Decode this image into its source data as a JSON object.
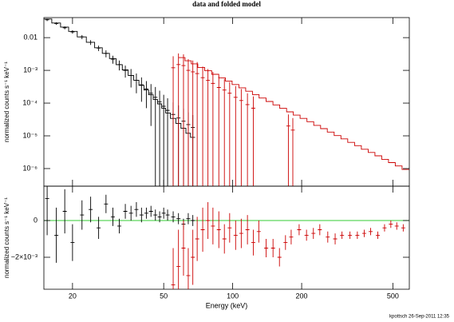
{
  "title": "data and folded model",
  "footer": "kpottsch 26-Sep-2011 12:35",
  "chart_data": [
    {
      "type": "errorbar",
      "ylabel": "normalized counts s⁻¹ keV⁻¹",
      "log_x": true,
      "log_y": true,
      "xlim": [
        15,
        590
      ],
      "ylim": [
        2.9e-07,
        0.041
      ],
      "yticks": [
        {
          "value": 1e-06,
          "label": "10⁻⁶"
        },
        {
          "value": 1e-05,
          "label": "10⁻⁵"
        },
        {
          "value": 0.0001,
          "label": "10⁻⁴"
        },
        {
          "value": 0.001,
          "label": "10⁻³"
        },
        0.01
      ],
      "series": [
        {
          "style": "points",
          "color": "#000000",
          "x": [
            15.5,
            17,
            18.5,
            20,
            22,
            24,
            26,
            28,
            30,
            32,
            34,
            36,
            38,
            40,
            42,
            44,
            46,
            48,
            50,
            52,
            55,
            58,
            61,
            64,
            67
          ],
          "values": [
            0.035,
            0.027,
            0.02,
            0.015,
            0.0105,
            0.0072,
            0.0048,
            0.0033,
            0.0022,
            0.0015,
            0.001,
            0.0007,
            0.0005,
            0.00036,
            0.00027,
            0.0002,
            0.00015,
            0.00011,
            8e-05,
            6e-05,
            4.5e-05,
            3.5e-05,
            2.8e-05,
            2.2e-05,
            1.8e-05
          ],
          "errors": [
            0.003,
            0.0025,
            0.002,
            0.0018,
            0.0015,
            0.0012,
            0.0009,
            0.0008,
            0.0006,
            0.0005,
            0.0004,
            0.0004,
            0.0003,
            0.00025,
            0.0002,
            0.00018,
            0.00016,
            0.00013,
            0.0001,
            8e-05,
            6e-05,
            5e-05,
            4e-05,
            3e-05,
            2.5e-05
          ]
        },
        {
          "style": "step",
          "color": "#000000",
          "x": [
            15.5,
            17,
            18.5,
            20,
            22,
            24,
            26,
            28,
            30,
            32,
            34,
            36,
            38,
            40,
            42,
            44,
            46,
            48,
            50,
            52,
            55,
            58,
            61,
            64,
            67
          ],
          "values": [
            0.037,
            0.028,
            0.021,
            0.0155,
            0.0105,
            0.0072,
            0.0049,
            0.0033,
            0.0023,
            0.0015,
            0.00103,
            0.0007,
            0.0005,
            0.00035,
            0.00025,
            0.00018,
            0.00013,
            9.5e-05,
            7e-05,
            5e-05,
            3.4e-05,
            2.4e-05,
            1.7e-05,
            1.2e-05,
            9e-06
          ]
        },
        {
          "style": "points",
          "color": "#cc0000",
          "x": [
            55,
            58,
            61,
            64,
            67,
            70,
            74,
            78,
            82,
            87,
            92,
            97,
            103,
            109,
            116,
            123,
            175,
            183
          ],
          "values": [
            0.0012,
            0.0015,
            0.0014,
            0.001,
            0.0009,
            0.0008,
            0.0006,
            0.0005,
            0.0004,
            0.0003,
            0.00025,
            0.0002,
            0.00015,
            0.00012,
            9e-05,
            7e-05,
            2e-05,
            1.5e-05
          ],
          "errors": [
            0.0015,
            0.0018,
            0.0017,
            0.0012,
            0.0011,
            0.001,
            0.0007,
            0.0006,
            0.0005,
            0.00036,
            0.0003,
            0.00024,
            0.00018,
            0.00015,
            0.00011,
            9e-05,
            2.5e-05,
            2e-05
          ]
        },
        {
          "style": "step",
          "color": "#cc0000",
          "x": [
            60,
            64,
            68,
            73,
            78,
            84,
            90,
            96,
            103,
            110,
            118,
            126,
            135,
            145,
            155,
            166,
            178,
            190,
            204,
            218,
            234,
            250,
            268,
            287,
            307,
            329,
            352,
            377,
            404,
            432,
            463,
            495,
            530,
            568
          ],
          "values": [
            0.00245,
            0.00196,
            0.00158,
            0.00123,
            0.00098,
            0.00076,
            0.000593,
            0.000473,
            0.00037,
            0.000294,
            0.00023,
            0.000182,
            0.000143,
            0.000112,
            8.8e-05,
            6.9e-05,
            5.4e-05,
            4.3e-05,
            3.4e-05,
            2.7e-05,
            2.09e-05,
            1.66e-05,
            1.3e-05,
            1.02e-05,
            8.1e-06,
            6.3e-06,
            5e-06,
            3.9e-06,
            3.1e-06,
            2.45e-06,
            1.92e-06,
            1.52e-06,
            1.2e-06,
            9.4e-07
          ]
        }
      ]
    },
    {
      "type": "errorbar",
      "ylabel": "normalized counts s⁻¹ keV⁻¹",
      "xlabel": "Energy (keV)",
      "log_x": true,
      "log_y": false,
      "xlim": [
        15,
        590
      ],
      "ylim": [
        -0.00374,
        0.00187
      ],
      "xticks": [
        20,
        50,
        100,
        200,
        500
      ],
      "yticks": [
        {
          "value": -0.002,
          "label": "−2×10⁻³"
        },
        0
      ],
      "reference_line": {
        "value": 0,
        "color": "#33cc33"
      },
      "series": [
        {
          "style": "points",
          "color": "#000000",
          "x": [
            15.5,
            17,
            18.5,
            20,
            22,
            24,
            26,
            28,
            30,
            32,
            34,
            36,
            38,
            40,
            42,
            44,
            46,
            48,
            50,
            52,
            55,
            58,
            61,
            64,
            67
          ],
          "values": [
            0.0012,
            -0.0008,
            0.0005,
            -0.0012,
            0.0003,
            0.0006,
            -0.0004,
            0.0009,
            0.0002,
            -0.0003,
            0.0005,
            0.0004,
            0.0006,
            0.0003,
            0.0004,
            0.0005,
            0.0003,
            0.0002,
            0.0004,
            0.0003,
            0.0002,
            0.0001,
            -0.0002,
            0.0001,
            0
          ],
          "errors": [
            0.002,
            0.0015,
            0.0012,
            0.001,
            0.0008,
            0.0007,
            0.0006,
            0.0005,
            0.0005,
            0.0004,
            0.0004,
            0.0004,
            0.0004,
            0.0004,
            0.0003,
            0.0003,
            0.0003,
            0.0003,
            0.0003,
            0.0003,
            0.0003,
            0.0003,
            0.0003,
            0.0003,
            0.0003
          ]
        },
        {
          "style": "points",
          "color": "#cc0000",
          "x": [
            55,
            58,
            61,
            64,
            67,
            70,
            74,
            78,
            82,
            87,
            92,
            97,
            103,
            109,
            116,
            123,
            130,
            140,
            150,
            160,
            170,
            180,
            195,
            210,
            225,
            240,
            260,
            280,
            300,
            325,
            350,
            375,
            400,
            430,
            460,
            490,
            520,
            555
          ],
          "values": [
            -0.0035,
            -0.0025,
            -0.0015,
            -0.003,
            -0.002,
            -0.001,
            -0.0005,
            0,
            -0.0003,
            -0.0005,
            -0.001,
            -0.0004,
            -0.0008,
            -0.0007,
            -0.0005,
            -0.0012,
            -0.0006,
            -0.0015,
            -0.0015,
            -0.002,
            -0.0012,
            -0.0009,
            -0.0005,
            -0.0008,
            -0.0007,
            -0.0005,
            -0.0009,
            -0.001,
            -0.0008,
            -0.0008,
            -0.0008,
            -0.0007,
            -0.0006,
            -0.0008,
            -0.0004,
            -0.0002,
            -0.0003,
            -0.0004
          ],
          "errors": [
            0.002,
            0.002,
            0.0015,
            0.0015,
            0.0015,
            0.0012,
            0.0012,
            0.001,
            0.001,
            0.001,
            0.0008,
            0.0008,
            0.0008,
            0.0008,
            0.0008,
            0.0007,
            0.0006,
            0.0005,
            0.0005,
            0.0005,
            0.0004,
            0.0004,
            0.0003,
            0.0003,
            0.0003,
            0.0003,
            0.0003,
            0.0003,
            0.0002,
            0.0002,
            0.0002,
            0.0002,
            0.0002,
            0.0002,
            0.0002,
            0.0002,
            0.0002,
            0.0002
          ]
        }
      ]
    }
  ]
}
